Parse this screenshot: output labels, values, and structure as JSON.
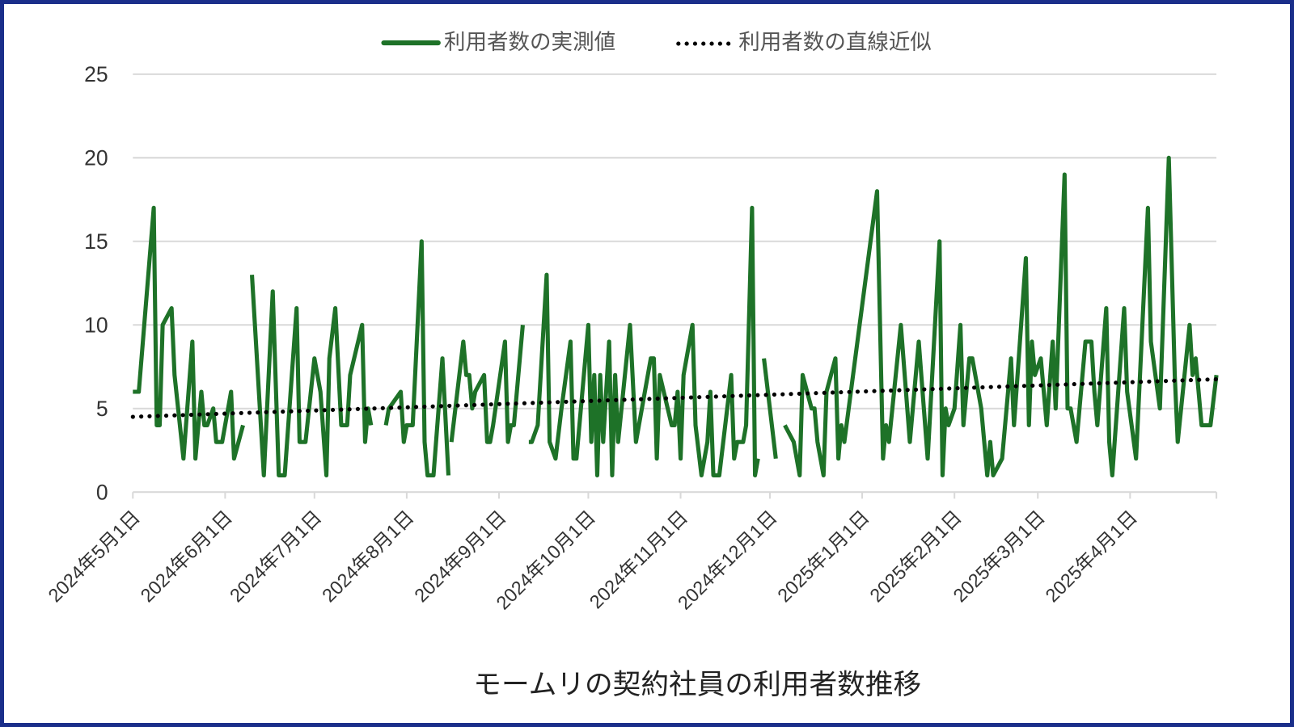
{
  "chart_data": {
    "type": "line",
    "title": "モームリの契約社員の利用者数推移",
    "xlabel": "",
    "ylabel": "",
    "ylim": [
      0,
      25
    ],
    "yticks": [
      "0",
      "5",
      "10",
      "15",
      "20",
      "25"
    ],
    "xlim": [
      "2024-05-01",
      "2025-04-30"
    ],
    "xticks": [
      {
        "date": "2024-05-01",
        "label": "2024年5月1日"
      },
      {
        "date": "2024-06-01",
        "label": "2024年6月1日"
      },
      {
        "date": "2024-07-01",
        "label": "2024年7月1日"
      },
      {
        "date": "2024-08-01",
        "label": "2024年8月1日"
      },
      {
        "date": "2024-09-01",
        "label": "2024年9月1日"
      },
      {
        "date": "2024-10-01",
        "label": "2024年10月1日"
      },
      {
        "date": "2024-11-01",
        "label": "2024年11月1日"
      },
      {
        "date": "2024-12-01",
        "label": "2024年12月1日"
      },
      {
        "date": "2025-01-01",
        "label": "2025年1月1日"
      },
      {
        "date": "2025-02-01",
        "label": "2025年2月1日"
      },
      {
        "date": "2025-03-01",
        "label": "2025年3月1日"
      },
      {
        "date": "2025-04-01",
        "label": "2025年4月1日"
      }
    ],
    "grid": true,
    "legend_position": "top",
    "series": [
      {
        "name": "利用者数の実測値",
        "color": "#1e7228",
        "style": "solid",
        "points": [
          [
            "2024-05-01",
            6
          ],
          [
            "2024-05-03",
            6
          ],
          [
            "2024-05-08",
            17
          ],
          [
            "2024-05-09",
            4
          ],
          [
            "2024-05-10",
            4
          ],
          [
            "2024-05-11",
            10
          ],
          [
            "2024-05-14",
            11
          ],
          [
            "2024-05-15",
            7
          ],
          [
            "2024-05-18",
            2
          ],
          [
            "2024-05-21",
            9
          ],
          [
            "2024-05-22",
            2
          ],
          [
            "2024-05-24",
            6
          ],
          [
            "2024-05-25",
            4
          ],
          [
            "2024-05-26",
            4
          ],
          [
            "2024-05-28",
            5
          ],
          [
            "2024-05-29",
            3
          ],
          [
            "2024-05-31",
            3
          ],
          [
            "2024-06-03",
            6
          ],
          [
            "2024-06-04",
            2
          ],
          [
            "2024-06-07",
            4
          ],
          null,
          [
            "2024-06-10",
            13
          ],
          [
            "2024-06-14",
            1
          ],
          [
            "2024-06-17",
            12
          ],
          [
            "2024-06-19",
            1
          ],
          [
            "2024-06-21",
            1
          ],
          [
            "2024-06-25",
            11
          ],
          [
            "2024-06-26",
            3
          ],
          [
            "2024-06-28",
            3
          ],
          [
            "2024-07-01",
            8
          ],
          [
            "2024-07-03",
            6
          ],
          [
            "2024-07-05",
            1
          ],
          [
            "2024-07-06",
            8
          ],
          [
            "2024-07-08",
            11
          ],
          [
            "2024-07-10",
            4
          ],
          [
            "2024-07-12",
            4
          ],
          [
            "2024-07-13",
            7
          ],
          [
            "2024-07-17",
            10
          ],
          [
            "2024-07-18",
            3
          ],
          [
            "2024-07-19",
            5
          ],
          [
            "2024-07-20",
            4
          ],
          null,
          [
            "2024-07-25",
            4
          ],
          [
            "2024-07-26",
            5
          ],
          [
            "2024-07-30",
            6
          ],
          [
            "2024-07-31",
            3
          ],
          [
            "2024-08-01",
            4
          ],
          [
            "2024-08-03",
            4
          ],
          [
            "2024-08-06",
            15
          ],
          [
            "2024-08-07",
            3
          ],
          [
            "2024-08-08",
            1
          ],
          [
            "2024-08-10",
            1
          ],
          [
            "2024-08-13",
            8
          ],
          [
            "2024-08-15",
            1
          ],
          null,
          [
            "2024-08-16",
            3
          ],
          [
            "2024-08-20",
            9
          ],
          [
            "2024-08-21",
            7
          ],
          [
            "2024-08-22",
            7
          ],
          [
            "2024-08-23",
            5
          ],
          [
            "2024-08-24",
            6
          ],
          [
            "2024-08-27",
            7
          ],
          [
            "2024-08-28",
            3
          ],
          [
            "2024-08-29",
            3
          ],
          [
            "2024-08-30",
            4
          ],
          [
            "2024-09-03",
            9
          ],
          [
            "2024-09-04",
            3
          ],
          [
            "2024-09-05",
            4
          ],
          [
            "2024-09-06",
            4
          ],
          [
            "2024-09-09",
            10
          ],
          null,
          [
            "2024-09-11",
            3
          ],
          [
            "2024-09-12",
            3
          ],
          [
            "2024-09-14",
            4
          ],
          [
            "2024-09-17",
            13
          ],
          [
            "2024-09-18",
            3
          ],
          [
            "2024-09-20",
            2
          ],
          [
            "2024-09-22",
            5
          ],
          [
            "2024-09-25",
            9
          ],
          [
            "2024-09-26",
            2
          ],
          [
            "2024-09-27",
            2
          ],
          [
            "2024-10-01",
            10
          ],
          [
            "2024-10-02",
            3
          ],
          [
            "2024-10-03",
            7
          ],
          [
            "2024-10-04",
            1
          ],
          [
            "2024-10-05",
            7
          ],
          [
            "2024-10-06",
            3
          ],
          [
            "2024-10-08",
            9
          ],
          [
            "2024-10-09",
            1
          ],
          [
            "2024-10-10",
            7
          ],
          [
            "2024-10-11",
            3
          ],
          [
            "2024-10-15",
            10
          ],
          [
            "2024-10-17",
            3
          ],
          [
            "2024-10-18",
            4
          ],
          [
            "2024-10-22",
            8
          ],
          [
            "2024-10-23",
            8
          ],
          [
            "2024-10-24",
            2
          ],
          [
            "2024-10-25",
            7
          ],
          [
            "2024-10-29",
            4
          ],
          [
            "2024-10-30",
            4
          ],
          [
            "2024-10-31",
            6
          ],
          [
            "2024-11-01",
            2
          ],
          [
            "2024-11-02",
            7
          ],
          [
            "2024-11-05",
            10
          ],
          [
            "2024-11-06",
            4
          ],
          [
            "2024-11-08",
            1
          ],
          [
            "2024-11-10",
            3
          ],
          [
            "2024-11-11",
            6
          ],
          [
            "2024-11-12",
            1
          ],
          [
            "2024-11-14",
            1
          ],
          [
            "2024-11-18",
            7
          ],
          [
            "2024-11-19",
            2
          ],
          [
            "2024-11-20",
            3
          ],
          [
            "2024-11-22",
            3
          ],
          [
            "2024-11-23",
            4
          ],
          [
            "2024-11-25",
            17
          ],
          [
            "2024-11-26",
            1
          ],
          [
            "2024-11-27",
            2
          ],
          null,
          [
            "2024-11-29",
            8
          ],
          [
            "2024-12-03",
            2
          ],
          null,
          [
            "2024-12-06",
            4
          ],
          [
            "2024-12-09",
            3
          ],
          [
            "2024-12-11",
            1
          ],
          [
            "2024-12-12",
            7
          ],
          [
            "2024-12-15",
            5
          ],
          [
            "2024-12-16",
            5
          ],
          [
            "2024-12-17",
            3
          ],
          [
            "2024-12-19",
            1
          ],
          [
            "2024-12-20",
            6
          ],
          [
            "2024-12-23",
            8
          ],
          [
            "2024-12-24",
            2
          ],
          [
            "2024-12-25",
            4
          ],
          [
            "2024-12-26",
            3
          ],
          [
            "2025-01-06",
            18
          ],
          [
            "2025-01-08",
            2
          ],
          [
            "2025-01-09",
            4
          ],
          [
            "2025-01-10",
            3
          ],
          [
            "2025-01-14",
            10
          ],
          [
            "2025-01-17",
            3
          ],
          [
            "2025-01-20",
            9
          ],
          [
            "2025-01-23",
            2
          ],
          [
            "2025-01-27",
            15
          ],
          [
            "2025-01-28",
            1
          ],
          [
            "2025-01-29",
            5
          ],
          [
            "2025-01-30",
            4
          ],
          [
            "2025-02-01",
            5
          ],
          [
            "2025-02-03",
            10
          ],
          [
            "2025-02-04",
            4
          ],
          [
            "2025-02-06",
            8
          ],
          [
            "2025-02-07",
            8
          ],
          [
            "2025-02-10",
            5
          ],
          [
            "2025-02-12",
            1
          ],
          [
            "2025-02-13",
            3
          ],
          [
            "2025-02-14",
            1
          ],
          [
            "2025-02-17",
            2
          ],
          [
            "2025-02-18",
            4
          ],
          [
            "2025-02-20",
            8
          ],
          [
            "2025-02-21",
            4
          ],
          [
            "2025-02-25",
            14
          ],
          [
            "2025-02-26",
            4
          ],
          [
            "2025-02-27",
            9
          ],
          [
            "2025-02-28",
            7
          ],
          [
            "2025-03-02",
            8
          ],
          [
            "2025-03-04",
            4
          ],
          [
            "2025-03-06",
            9
          ],
          [
            "2025-03-07",
            5
          ],
          [
            "2025-03-10",
            19
          ],
          [
            "2025-03-11",
            5
          ],
          [
            "2025-03-12",
            5
          ],
          [
            "2025-03-14",
            3
          ],
          [
            "2025-03-17",
            9
          ],
          [
            "2025-03-19",
            9
          ],
          [
            "2025-03-20",
            6
          ],
          [
            "2025-03-21",
            4
          ],
          [
            "2025-03-24",
            11
          ],
          [
            "2025-03-25",
            3
          ],
          [
            "2025-03-26",
            1
          ],
          [
            "2025-03-30",
            11
          ],
          [
            "2025-03-31",
            6
          ],
          [
            "2025-04-03",
            2
          ],
          [
            "2025-04-07",
            17
          ],
          [
            "2025-04-08",
            9
          ],
          [
            "2025-04-11",
            5
          ],
          [
            "2025-04-14",
            20
          ],
          [
            "2025-04-16",
            7
          ],
          [
            "2025-04-17",
            3
          ],
          [
            "2025-04-21",
            10
          ],
          [
            "2025-04-22",
            7
          ],
          [
            "2025-04-23",
            8
          ],
          [
            "2025-04-24",
            6
          ],
          [
            "2025-04-25",
            4
          ],
          [
            "2025-04-28",
            4
          ],
          [
            "2025-04-30",
            7
          ]
        ]
      },
      {
        "name": "利用者数の直線近似",
        "color": "#000000",
        "style": "dotted",
        "points": [
          [
            "2024-05-01",
            4.5
          ],
          [
            "2025-04-30",
            6.75
          ]
        ]
      }
    ]
  }
}
